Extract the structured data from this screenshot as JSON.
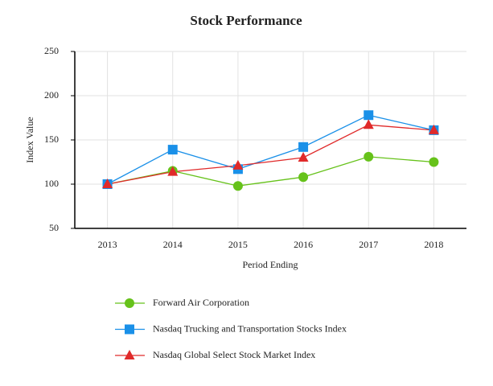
{
  "chart_data": {
    "type": "line",
    "title": "Stock Performance",
    "x_label": "Period Ending",
    "y_label": "Index Value",
    "categories": [
      "2013",
      "2014",
      "2015",
      "2016",
      "2017",
      "2018"
    ],
    "series": [
      {
        "name": "Forward Air Corporation",
        "color": "#66c21a",
        "marker": "circle",
        "values": [
          100,
          115,
          98,
          108,
          131,
          125
        ]
      },
      {
        "name": "Nasdaq Trucking and Transportation Stocks Index",
        "color": "#1a90e8",
        "marker": "square",
        "values": [
          100,
          139,
          117,
          142,
          178,
          161
        ]
      },
      {
        "name": "Nasdaq Global Select Stock Market Index",
        "color": "#e02a2a",
        "marker": "triangle",
        "values": [
          100,
          114,
          121,
          130,
          167,
          161
        ]
      }
    ],
    "ylim": [
      50,
      250
    ],
    "yticks": [
      50,
      100,
      150,
      200,
      250
    ],
    "grid": true,
    "legend": "bottom"
  }
}
